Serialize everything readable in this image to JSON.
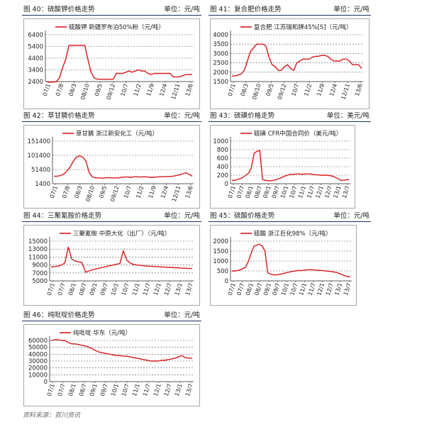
{
  "source_note": "资料来源：百川资讯",
  "unit_label_cny": "单位：元/吨",
  "unit_label_usd": "单位：美元/吨",
  "charts": [
    {
      "id": "c40",
      "figure_title": "图 40：硫酸钾价格走势",
      "unit": "单位：元/吨",
      "chart_data": {
        "type": "line",
        "legend": "硫酸钾 新疆罗布泊50%粉（元/吨）",
        "y_ticks": [
          6400,
          5400,
          4400,
          3400,
          2400
        ],
        "ylim": [
          2400,
          6400
        ],
        "x_tick_labels": [
          "07/1",
          "07/8",
          "08/3",
          "08/10",
          "09/5",
          "09/12",
          "10/7",
          "11/2",
          "11/9",
          "12/4",
          "12/11",
          "13/6"
        ],
        "color": "#d7191c",
        "values": [
          2400,
          2350,
          2350,
          2400,
          2700,
          3600,
          4300,
          5500,
          5500,
          5500,
          5500,
          5500,
          5500,
          4300,
          3200,
          2700,
          2600,
          2600,
          2600,
          2600,
          2600,
          2600,
          3100,
          3100,
          3100,
          3200,
          3300,
          3200,
          3300,
          3400,
          3300,
          3300,
          3100,
          3000,
          3100,
          3100,
          3100,
          3100,
          3100,
          3100,
          2800,
          2800,
          2800,
          2900,
          3000,
          3000,
          3000
        ]
      }
    },
    {
      "id": "c41",
      "figure_title": "图 41：复合肥价格走势",
      "unit": "单位：元/吨",
      "chart_data": {
        "type": "line",
        "legend": "复合肥 江苏瑞和牌45%[S]（元/吨）",
        "y_ticks": [
          4000,
          3500,
          3000,
          2500,
          2000,
          1500
        ],
        "ylim": [
          1500,
          4000
        ],
        "x_tick_labels": [
          "07/1",
          "08/3",
          "08/10",
          "09/5",
          "09/12",
          "10/7",
          "11/2",
          "11/9",
          "12/4",
          "12/11",
          "13/6"
        ],
        "color": "#d7191c",
        "values": [
          1800,
          1800,
          1850,
          1900,
          2100,
          2600,
          3100,
          3300,
          3500,
          3500,
          3500,
          3400,
          2800,
          2400,
          2300,
          2100,
          2100,
          2300,
          2400,
          2200,
          2100,
          2500,
          2600,
          2700,
          2700,
          2700,
          2800,
          2850,
          2850,
          2900,
          2900,
          2850,
          2700,
          2600,
          2600,
          2600,
          2700,
          2700,
          2600,
          2400,
          2400,
          2400,
          2200
        ]
      }
    },
    {
      "id": "c42",
      "figure_title": "图 42：草甘膦价格走势",
      "unit": "单位：元/吨",
      "chart_data": {
        "type": "line",
        "legend": "草甘膦 浙江新安化工（元/吨）",
        "y_ticks": [
          151400,
          101400,
          51400,
          1400
        ],
        "ylim": [
          1400,
          151400
        ],
        "x_tick_labels": [
          "07/1",
          "07/8",
          "08/3",
          "08/10",
          "09/5",
          "09/12",
          "10/7",
          "11/2",
          "11/9",
          "12/4",
          "12/11",
          "13/6"
        ],
        "color": "#d7191c",
        "values": [
          28000,
          28000,
          30000,
          35000,
          45000,
          60000,
          80000,
          95000,
          100000,
          95000,
          80000,
          40000,
          25000,
          22000,
          22000,
          21000,
          22000,
          23000,
          22000,
          22000,
          22000,
          24000,
          25000,
          25000,
          24000,
          26000,
          26000,
          25000,
          26000,
          25000,
          24000,
          24000,
          25000,
          26000,
          26000,
          27000,
          27000,
          28000,
          30000,
          33000,
          36000,
          40000,
          35000,
          28000
        ]
      }
    },
    {
      "id": "c43",
      "figure_title": "图 43：硫磺价格走势",
      "unit": "单位：美元/吨",
      "chart_data": {
        "type": "line",
        "legend": "硫磺 CFR中国合同价（美元/吨）",
        "y_ticks": [
          1000,
          800,
          600,
          400,
          200,
          0
        ],
        "ylim": [
          0,
          1000
        ],
        "x_tick_labels": [
          "07/1",
          "07/7",
          "08/1",
          "08/7",
          "09/1",
          "09/7",
          "10/1",
          "10/7",
          "11/1",
          "11/7",
          "12/1",
          "12/7",
          "13/1",
          "13/7"
        ],
        "color": "#d7191c",
        "values": [
          80,
          80,
          100,
          120,
          150,
          200,
          250,
          380,
          720,
          760,
          780,
          100,
          80,
          70,
          70,
          80,
          100,
          120,
          150,
          180,
          200,
          220,
          220,
          230,
          230,
          220,
          230,
          230,
          230,
          220,
          210,
          210,
          200,
          200,
          200,
          190,
          180,
          150,
          120,
          80,
          80,
          90,
          100
        ]
      }
    },
    {
      "id": "c44",
      "figure_title": "图 44：三聚氰胺价格走势",
      "unit": "单位：元/吨",
      "chart_data": {
        "type": "line",
        "legend": "三聚氰胺 中原大化（出厂）（元/吨）",
        "y_ticks": [
          15000,
          13000,
          11000,
          9000,
          7000,
          5000
        ],
        "ylim": [
          5000,
          15000
        ],
        "x_tick_labels": [
          "07/1",
          "07/7",
          "08/1",
          "08/7",
          "09/1",
          "09/7",
          "10/1",
          "10/7",
          "11/1",
          "11/7",
          "12/1",
          "12/7",
          "13/1",
          "13/7"
        ],
        "color": "#d7191c",
        "values": [
          8500,
          8600,
          8700,
          9000,
          9500,
          13500,
          10500,
          10000,
          9800,
          9600,
          7200,
          7500,
          7800,
          8000,
          8200,
          8400,
          8600,
          8800,
          9000,
          9200,
          9400,
          12600,
          10200,
          9500,
          9100,
          9000,
          8900,
          8800,
          8700,
          8700,
          8600,
          8600,
          8500,
          8500,
          8400,
          8400,
          8300,
          8300,
          8200,
          8200,
          8100,
          8100
        ]
      }
    },
    {
      "id": "c45",
      "figure_title": "图 45：硫酸价格走势",
      "unit": "单位：元/吨",
      "chart_data": {
        "type": "line",
        "legend": "硫酸 浙江巨化98%（元/吨）",
        "y_ticks": [
          2000,
          1500,
          1000,
          500,
          0
        ],
        "ylim": [
          0,
          2000
        ],
        "x_tick_labels": [
          "07/1",
          "07/7",
          "08/1",
          "08/7",
          "09/1",
          "09/7",
          "10/1",
          "10/7",
          "11/1",
          "11/7",
          "12/1",
          "12/7",
          "13/1",
          "13/7"
        ],
        "color": "#d7191c",
        "values": [
          500,
          500,
          520,
          560,
          620,
          700,
          1000,
          1400,
          1750,
          1800,
          1850,
          1750,
          1500,
          400,
          350,
          300,
          300,
          320,
          350,
          380,
          420,
          450,
          480,
          500,
          520,
          520,
          540,
          550,
          560,
          560,
          550,
          540,
          530,
          520,
          500,
          490,
          470,
          450,
          420,
          380,
          320,
          260,
          220,
          200
        ]
      }
    },
    {
      "id": "c46",
      "figure_title": "图 46：纯吡啶价格走势",
      "unit": "单位：元/吨",
      "chart_data": {
        "type": "line",
        "legend": "纯吡啶 华东（元/吨）",
        "y_ticks": [
          60000,
          50000,
          40000,
          30000,
          20000,
          10000,
          0
        ],
        "ylim": [
          0,
          60000
        ],
        "x_tick_labels": [
          "07/1",
          "07/7",
          "08/1",
          "08/7",
          "09/1",
          "09/7",
          "10/1",
          "10/7",
          "11/1",
          "11/7",
          "12/1",
          "12/7",
          "13/1",
          "13/7"
        ],
        "color": "#d7191c",
        "values": [
          60000,
          61000,
          61000,
          60000,
          60000,
          57000,
          55000,
          55000,
          54000,
          53000,
          52000,
          50000,
          48000,
          45000,
          43000,
          42000,
          41000,
          40000,
          39000,
          38000,
          38000,
          37000,
          37000,
          36000,
          35000,
          34000,
          33000,
          32000,
          31000,
          30000,
          30000,
          30000,
          31000,
          31000,
          32000,
          33000,
          34000,
          36000,
          38000,
          35000,
          34000,
          34000
        ]
      }
    }
  ]
}
